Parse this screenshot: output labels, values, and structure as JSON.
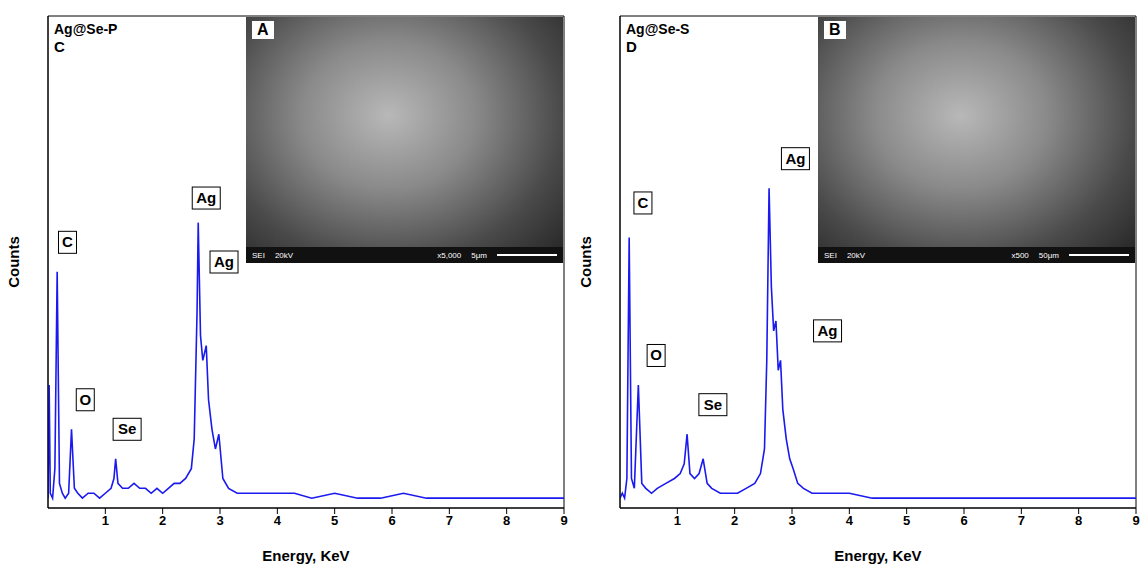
{
  "chart_data": [
    {
      "type": "line",
      "title": "Ag@Se-P",
      "panel_label": "C",
      "x_label": "Energy, KeV",
      "y_label": "Counts",
      "xlim": [
        0,
        9
      ],
      "ylim": [
        0,
        100
      ],
      "xticks": [
        1,
        2,
        3,
        4,
        5,
        6,
        7,
        8,
        9
      ],
      "tick_labels": "x",
      "color": "#1a1aee",
      "x": [
        0,
        0.02,
        0.04,
        0.08,
        0.12,
        0.16,
        0.2,
        0.25,
        0.3,
        0.36,
        0.41,
        0.46,
        0.52,
        0.6,
        0.7,
        0.8,
        0.9,
        1.0,
        1.1,
        1.15,
        1.18,
        1.22,
        1.3,
        1.4,
        1.5,
        1.6,
        1.7,
        1.8,
        1.9,
        2.0,
        2.1,
        2.2,
        2.3,
        2.4,
        2.5,
        2.55,
        2.6,
        2.62,
        2.66,
        2.7,
        2.74,
        2.76,
        2.8,
        2.86,
        2.92,
        2.98,
        3.05,
        3.15,
        3.3,
        3.5,
        3.7,
        4,
        4.3,
        4.6,
        5,
        5.4,
        5.8,
        6.2,
        6.6,
        7,
        7.5,
        8,
        8.5,
        9
      ],
      "values": [
        2,
        25,
        3,
        2,
        8,
        48,
        5,
        3,
        2,
        3,
        16,
        4,
        3,
        2,
        3,
        3,
        2,
        3,
        4,
        6,
        10,
        5,
        4,
        4,
        5,
        4,
        4,
        3,
        4,
        3,
        4,
        5,
        5,
        6,
        8,
        14,
        40,
        58,
        35,
        30,
        32,
        33,
        22,
        16,
        12,
        15,
        6,
        4,
        3,
        3,
        3,
        3,
        3,
        2,
        3,
        2,
        2,
        3,
        2,
        2,
        2,
        2,
        2,
        2
      ],
      "annotations": [
        {
          "text": "C",
          "x": 0.34,
          "y": 54
        },
        {
          "text": "O",
          "x": 0.65,
          "y": 22
        },
        {
          "text": "Se",
          "x": 1.38,
          "y": 16
        },
        {
          "text": "Ag",
          "x": 2.76,
          "y": 63
        },
        {
          "text": "Ag",
          "x": 3.07,
          "y": 50
        }
      ],
      "inset": {
        "label": "A",
        "caption": [
          "SEI",
          "20kV",
          "x5,000",
          "5μm"
        ]
      }
    },
    {
      "type": "line",
      "title": "Ag@Se-S",
      "panel_label": "D",
      "x_label": "Energy, KeV",
      "y_label": "Counts",
      "xlim": [
        0,
        9
      ],
      "ylim": [
        0,
        100
      ],
      "xticks": [
        1,
        2,
        3,
        4,
        5,
        6,
        7,
        8,
        9
      ],
      "tick_labels": "x",
      "color": "#1a1aee",
      "x": [
        0,
        0.04,
        0.08,
        0.12,
        0.16,
        0.2,
        0.25,
        0.32,
        0.38,
        0.45,
        0.55,
        0.65,
        0.8,
        0.95,
        1.05,
        1.12,
        1.17,
        1.22,
        1.3,
        1.38,
        1.45,
        1.52,
        1.6,
        1.75,
        1.9,
        2.05,
        2.2,
        2.35,
        2.45,
        2.52,
        2.56,
        2.6,
        2.64,
        2.68,
        2.72,
        2.76,
        2.8,
        2.84,
        2.9,
        2.96,
        3.02,
        3.1,
        3.2,
        3.35,
        3.5,
        3.7,
        4,
        4.4,
        4.8,
        5.2,
        5.6,
        6,
        6.5,
        7,
        7.5,
        8,
        8.5,
        9
      ],
      "values": [
        2,
        3,
        2,
        6,
        55,
        6,
        4,
        25,
        5,
        4,
        3,
        4,
        5,
        6,
        7,
        9,
        15,
        7,
        6,
        7,
        10,
        5,
        4,
        3,
        3,
        3,
        4,
        5,
        7,
        12,
        30,
        65,
        45,
        36,
        38,
        28,
        30,
        20,
        14,
        10,
        8,
        5,
        4,
        3,
        3,
        3,
        3,
        2,
        2,
        2,
        2,
        2,
        2,
        2,
        2,
        2,
        2,
        2
      ],
      "annotations": [
        {
          "text": "C",
          "x": 0.4,
          "y": 62
        },
        {
          "text": "O",
          "x": 0.63,
          "y": 31
        },
        {
          "text": "Se",
          "x": 1.62,
          "y": 21
        },
        {
          "text": "Ag",
          "x": 3.06,
          "y": 71
        },
        {
          "text": "Ag",
          "x": 3.62,
          "y": 36
        }
      ],
      "inset": {
        "label": "B",
        "caption": [
          "SEI",
          "20kV",
          "x500",
          "50μm"
        ]
      }
    }
  ]
}
